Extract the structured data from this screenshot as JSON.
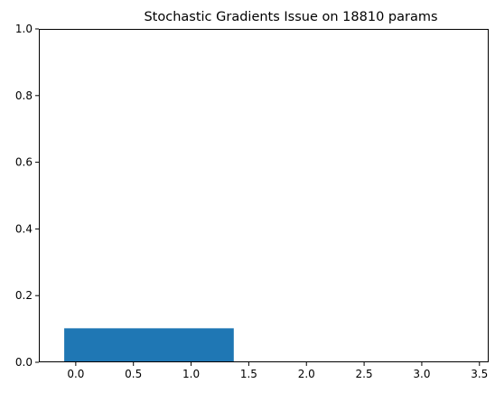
{
  "chart_data": {
    "type": "bar",
    "title": "Stochastic Gradients Issue on 18810 params",
    "xlabel": "",
    "ylabel": "",
    "bars": [
      {
        "x_start": -0.1,
        "x_end": 1.37,
        "value": 0.102
      }
    ],
    "xlim": [
      -0.32,
      3.58
    ],
    "ylim": [
      0,
      1
    ],
    "xticks": [
      "0.0",
      "0.5",
      "1.0",
      "1.5",
      "2.0",
      "2.5",
      "3.0",
      "3.5"
    ],
    "yticks": [
      "0.0",
      "0.2",
      "0.4",
      "0.6",
      "0.8",
      "1.0"
    ],
    "grid": false,
    "legend": "none",
    "bar_color": "#1f77b4"
  }
}
